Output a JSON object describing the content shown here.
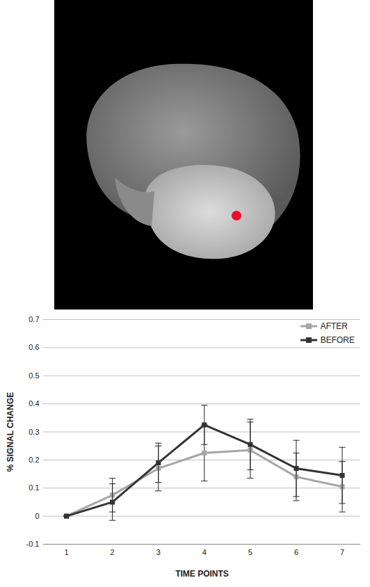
{
  "chart_data": {
    "type": "line",
    "x_label": "TIME POINTS",
    "y_label": "% SIGNAL CHANGE",
    "x": [
      1,
      2,
      3,
      4,
      5,
      6,
      7
    ],
    "xlim": [
      0.5,
      7.4
    ],
    "xticks": [
      1,
      2,
      3,
      4,
      5,
      6,
      7
    ],
    "ylim": [
      -0.1,
      0.7
    ],
    "yticks": [
      -0.1,
      0,
      0.1,
      0.2,
      0.3,
      0.4,
      0.5,
      0.6,
      0.7
    ],
    "grid": true,
    "legend": "top-right",
    "marker": "square",
    "series": [
      {
        "name": "AFTER",
        "color": "#a6a6a6",
        "values": [
          0,
          0.075,
          0.17,
          0.225,
          0.235,
          0.14,
          0.105
        ],
        "error": [
          0,
          0.06,
          0.08,
          0.1,
          0.1,
          0.085,
          0.09
        ]
      },
      {
        "name": "BEFORE",
        "color": "#333333",
        "values": [
          0,
          0.05,
          0.19,
          0.325,
          0.255,
          0.17,
          0.145
        ],
        "error": [
          0,
          0.065,
          0.07,
          0.07,
          0.09,
          0.1,
          0.1
        ]
      }
    ]
  }
}
